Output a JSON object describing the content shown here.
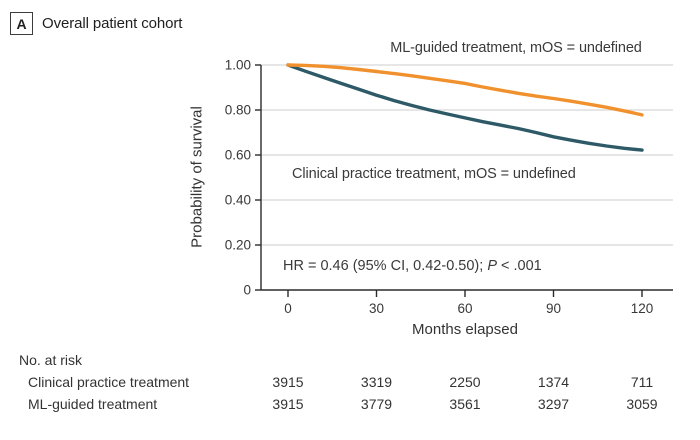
{
  "panel": {
    "label": "A",
    "title": "Overall patient cohort"
  },
  "colors": {
    "ml_curve": "#F0912D",
    "clinical_curve": "#2E5A68",
    "grid": "#D8D8D8",
    "axis": "#2B2B2B",
    "text": "#3A3A3A"
  },
  "chart_data": {
    "type": "line",
    "subtype": "kaplan-meier-survival",
    "title": "Overall patient cohort",
    "xlabel": "Months elapsed",
    "ylabel": "Probability of survival",
    "xlim": [
      0,
      120
    ],
    "ylim": [
      0,
      1.0
    ],
    "xticks": [
      0,
      30,
      60,
      90,
      120
    ],
    "yticks": [
      0,
      0.2,
      0.4,
      0.6,
      0.8,
      1.0
    ],
    "ytick_labels": [
      "0",
      "0.20",
      "0.40",
      "0.60",
      "0.80",
      "1.00"
    ],
    "grid": "horizontal",
    "legend_position": "labels-on-plot",
    "series": [
      {
        "id": "ml-guided",
        "name": "ML-guided treatment",
        "label": "ML-guided treatment, mOS = undefined",
        "color": "#F0912D",
        "points": [
          [
            0,
            1.0
          ],
          [
            6,
            0.998
          ],
          [
            12,
            0.994
          ],
          [
            18,
            0.988
          ],
          [
            24,
            0.98
          ],
          [
            30,
            0.971
          ],
          [
            36,
            0.962
          ],
          [
            42,
            0.952
          ],
          [
            48,
            0.941
          ],
          [
            54,
            0.93
          ],
          [
            60,
            0.918
          ],
          [
            66,
            0.902
          ],
          [
            72,
            0.888
          ],
          [
            78,
            0.874
          ],
          [
            84,
            0.862
          ],
          [
            90,
            0.851
          ],
          [
            96,
            0.839
          ],
          [
            102,
            0.826
          ],
          [
            108,
            0.812
          ],
          [
            114,
            0.796
          ],
          [
            120,
            0.778
          ]
        ]
      },
      {
        "id": "clinical-practice",
        "name": "Clinical practice treatment",
        "label": "Clinical practice treatment, mOS = undefined",
        "color": "#2E5A68",
        "points": [
          [
            0,
            1.0
          ],
          [
            6,
            0.972
          ],
          [
            12,
            0.945
          ],
          [
            18,
            0.918
          ],
          [
            24,
            0.892
          ],
          [
            30,
            0.866
          ],
          [
            36,
            0.842
          ],
          [
            42,
            0.82
          ],
          [
            48,
            0.8
          ],
          [
            54,
            0.782
          ],
          [
            60,
            0.765
          ],
          [
            66,
            0.748
          ],
          [
            72,
            0.733
          ],
          [
            78,
            0.718
          ],
          [
            84,
            0.7
          ],
          [
            90,
            0.681
          ],
          [
            96,
            0.666
          ],
          [
            102,
            0.652
          ],
          [
            108,
            0.64
          ],
          [
            114,
            0.63
          ],
          [
            120,
            0.622
          ]
        ]
      }
    ],
    "annotation": {
      "hr_prefix": "HR = 0.46 (95% CI, 0.42-0.50); ",
      "p_label": "P",
      "p_rest": " < .001"
    }
  },
  "risk_table": {
    "title": "No. at risk",
    "timepoints": [
      0,
      30,
      60,
      90,
      120
    ],
    "rows": [
      {
        "label": "Clinical practice treatment",
        "values": [
          "3915",
          "3319",
          "2250",
          "1374",
          "711"
        ]
      },
      {
        "label": "ML-guided treatment",
        "values": [
          "3915",
          "3779",
          "3561",
          "3297",
          "3059"
        ]
      }
    ]
  }
}
